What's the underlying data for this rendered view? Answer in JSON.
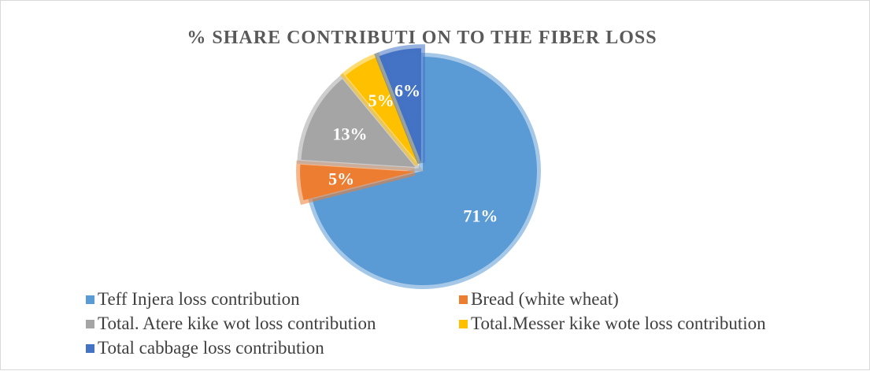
{
  "chart_data": {
    "type": "pie",
    "title": "% SHARE CONTRIBUTI ON TO THE FIBER LOSS",
    "slices": [
      {
        "name": "Teff Injera loss contribution",
        "value": 71,
        "label": "71%",
        "color": "#5b9bd5",
        "exploded": false
      },
      {
        "name": "Bread (white wheat)",
        "value": 5,
        "label": "5%",
        "color": "#ed7d31",
        "exploded": true
      },
      {
        "name": "Total. Atere kike wot loss contribution",
        "value": 13,
        "label": "13%",
        "color": "#a5a5a5",
        "exploded": true
      },
      {
        "name": "Total.Messer kike wote loss contribution",
        "value": 5,
        "label": "5%",
        "color": "#ffc000",
        "exploded": true
      },
      {
        "name": "Total cabbage loss contribution",
        "value": 6,
        "label": "6%",
        "color": "#4472c4",
        "exploded": true
      }
    ],
    "legend_position": "bottom"
  }
}
